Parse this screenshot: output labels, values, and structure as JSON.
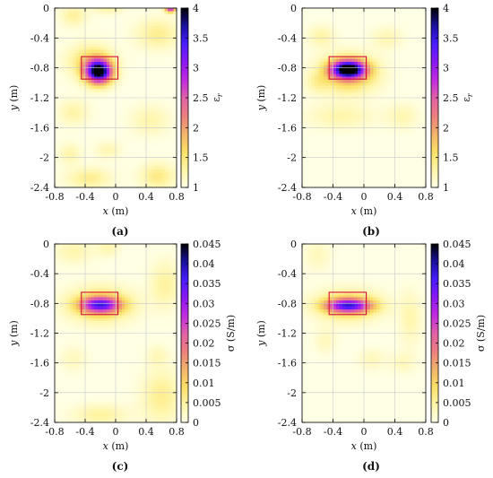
{
  "colormap": [
    "#ffffe6",
    "#fff5a8",
    "#fbe066",
    "#f2b36b",
    "#ec7e7e",
    "#e060a8",
    "#c02ae0",
    "#8a18f0",
    "#4a1cff",
    "#1a10a0",
    "#000000"
  ],
  "chart_data": [
    {
      "type": "heatmap",
      "id": "a",
      "caption": "(a)",
      "xlabel": "x (m)",
      "ylabel": "y (m)",
      "colorbar_label": "ε_r",
      "xlim": [
        -0.8,
        0.8
      ],
      "ylim": [
        -2.4,
        0
      ],
      "xticks": [
        -0.8,
        -0.4,
        0,
        0.4,
        0.8
      ],
      "xticklabels": [
        "-0.8",
        "-0.4",
        "0",
        "0.4",
        "0.8"
      ],
      "yticks": [
        0,
        -0.4,
        -0.8,
        -1.2,
        -1.6,
        -2,
        -2.4
      ],
      "yticklabels": [
        "0",
        "-0.4",
        "-0.8",
        "-1.2",
        "-1.6",
        "-2",
        "-2.4"
      ],
      "clim": [
        1,
        4
      ],
      "cbticks": [
        1,
        1.5,
        2,
        2.5,
        3,
        3.5,
        4
      ],
      "cbticklabels": [
        "1",
        "1.5",
        "2",
        "2.5",
        "3",
        "3.5",
        "4"
      ],
      "grid": true,
      "target_rect": {
        "x0": -0.45,
        "x1": 0.03,
        "y0": -0.95,
        "y1": -0.65
      },
      "blobs": [
        {
          "x": -0.22,
          "y": -0.85,
          "sx": 0.12,
          "sy": 0.11,
          "v": 3.05
        },
        {
          "x": -0.33,
          "y": -0.72,
          "sx": 0.2,
          "sy": 0.16,
          "v": 0.6
        },
        {
          "x": -0.55,
          "y": -0.1,
          "sx": 0.12,
          "sy": 0.1,
          "v": 0.35
        },
        {
          "x": -0.1,
          "y": 0.0,
          "sx": 0.14,
          "sy": 0.06,
          "v": 0.3
        },
        {
          "x": 0.55,
          "y": -0.35,
          "sx": 0.2,
          "sy": 0.14,
          "v": 0.4
        },
        {
          "x": 0.72,
          "y": 0.0,
          "sx": 0.05,
          "sy": 0.04,
          "v": 1.9
        },
        {
          "x": -0.55,
          "y": -1.4,
          "sx": 0.14,
          "sy": 0.12,
          "v": 0.3
        },
        {
          "x": 0.45,
          "y": -1.5,
          "sx": 0.18,
          "sy": 0.14,
          "v": 0.28
        },
        {
          "x": -0.35,
          "y": -2.28,
          "sx": 0.2,
          "sy": 0.1,
          "v": 0.4
        },
        {
          "x": 0.55,
          "y": -2.25,
          "sx": 0.16,
          "sy": 0.12,
          "v": 0.45
        },
        {
          "x": -0.1,
          "y": -1.9,
          "sx": 0.12,
          "sy": 0.08,
          "v": 0.25
        },
        {
          "x": -0.6,
          "y": -1.95,
          "sx": 0.1,
          "sy": 0.1,
          "v": 0.28
        }
      ]
    },
    {
      "type": "heatmap",
      "id": "b",
      "caption": "(b)",
      "xlabel": "x (m)",
      "ylabel": "y (m)",
      "colorbar_label": "ε_r",
      "xlim": [
        -0.8,
        0.8
      ],
      "ylim": [
        -2.4,
        0
      ],
      "xticks": [
        -0.8,
        -0.4,
        0,
        0.4,
        0.8
      ],
      "xticklabels": [
        "-0.8",
        "-0.4",
        "0",
        "0.4",
        "0.8"
      ],
      "yticks": [
        0,
        -0.4,
        -0.8,
        -1.2,
        -1.6,
        -2,
        -2.4
      ],
      "yticklabels": [
        "0",
        "-0.4",
        "-0.8",
        "-1.2",
        "-1.6",
        "-2",
        "-2.4"
      ],
      "clim": [
        1,
        4
      ],
      "cbticks": [
        1,
        1.5,
        2,
        2.5,
        3,
        3.5,
        4
      ],
      "cbticklabels": [
        "1",
        "1.5",
        "2",
        "2.5",
        "3",
        "3.5",
        "4"
      ],
      "grid": true,
      "target_rect": {
        "x0": -0.45,
        "x1": 0.03,
        "y0": -0.95,
        "y1": -0.65
      },
      "blobs": [
        {
          "x": -0.2,
          "y": -0.82,
          "sx": 0.15,
          "sy": 0.08,
          "v": 2.9
        },
        {
          "x": -0.2,
          "y": -0.88,
          "sx": 0.25,
          "sy": 0.17,
          "v": 0.9
        },
        {
          "x": -0.55,
          "y": -0.38,
          "sx": 0.12,
          "sy": 0.1,
          "v": 0.3
        },
        {
          "x": 0.3,
          "y": -0.4,
          "sx": 0.14,
          "sy": 0.1,
          "v": 0.25
        },
        {
          "x": -0.3,
          "y": -1.45,
          "sx": 0.3,
          "sy": 0.12,
          "v": 0.28
        },
        {
          "x": 0.5,
          "y": -1.45,
          "sx": 0.14,
          "sy": 0.12,
          "v": 0.25
        },
        {
          "x": -0.6,
          "y": -1.0,
          "sx": 0.1,
          "sy": 0.1,
          "v": 0.25
        }
      ]
    },
    {
      "type": "heatmap",
      "id": "c",
      "caption": "(c)",
      "xlabel": "x (m)",
      "ylabel": "y (m)",
      "colorbar_label": "σ (S/m)",
      "xlim": [
        -0.8,
        0.8
      ],
      "ylim": [
        -2.4,
        0
      ],
      "xticks": [
        -0.8,
        -0.4,
        0,
        0.4,
        0.8
      ],
      "xticklabels": [
        "-0.8",
        "-0.4",
        "0",
        "0.4",
        "0.8"
      ],
      "yticks": [
        0,
        -0.4,
        -0.8,
        -1.2,
        -1.6,
        -2,
        -2.4
      ],
      "yticklabels": [
        "0",
        "-0.4",
        "-0.8",
        "-1.2",
        "-1.6",
        "-2",
        "-2.4"
      ],
      "clim": [
        0,
        0.045
      ],
      "cbticks": [
        0,
        0.005,
        0.01,
        0.015,
        0.02,
        0.025,
        0.03,
        0.035,
        0.04,
        0.045
      ],
      "cbticklabels": [
        "0",
        "0.005",
        "0.01",
        "0.015",
        "0.02",
        "0.025",
        "0.03",
        "0.035",
        "0.04",
        "0.045"
      ],
      "grid": true,
      "target_rect": {
        "x0": -0.45,
        "x1": 0.03,
        "y0": -0.95,
        "y1": -0.65
      },
      "blobs": [
        {
          "x": -0.2,
          "y": -0.82,
          "sx": 0.18,
          "sy": 0.07,
          "v": 0.026
        },
        {
          "x": -0.2,
          "y": -0.82,
          "sx": 0.28,
          "sy": 0.16,
          "v": 0.012
        },
        {
          "x": -0.55,
          "y": -0.1,
          "sx": 0.18,
          "sy": 0.12,
          "v": 0.004
        },
        {
          "x": -0.1,
          "y": -0.05,
          "sx": 0.1,
          "sy": 0.08,
          "v": 0.004
        },
        {
          "x": 0.65,
          "y": -0.55,
          "sx": 0.14,
          "sy": 0.22,
          "v": 0.005
        },
        {
          "x": 0.55,
          "y": -1.5,
          "sx": 0.1,
          "sy": 0.1,
          "v": 0.003
        },
        {
          "x": 0.6,
          "y": -2.05,
          "sx": 0.18,
          "sy": 0.25,
          "v": 0.006
        },
        {
          "x": -0.2,
          "y": -2.3,
          "sx": 0.25,
          "sy": 0.1,
          "v": 0.005
        },
        {
          "x": -0.55,
          "y": -1.55,
          "sx": 0.12,
          "sy": 0.12,
          "v": 0.003
        }
      ]
    },
    {
      "type": "heatmap",
      "id": "d",
      "caption": "(d)",
      "xlabel": "x (m)",
      "ylabel": "y (m)",
      "colorbar_label": "σ (S/m)",
      "xlim": [
        -0.8,
        0.8
      ],
      "ylim": [
        -2.4,
        0
      ],
      "xticks": [
        -0.8,
        -0.4,
        0,
        0.4,
        0.8
      ],
      "xticklabels": [
        "-0.8",
        "-0.4",
        "0",
        "0.4",
        "0.8"
      ],
      "yticks": [
        0,
        -0.4,
        -0.8,
        -1.2,
        -1.6,
        -2,
        -2.4
      ],
      "yticklabels": [
        "0",
        "-0.4",
        "-0.8",
        "-1.2",
        "-1.6",
        "-2",
        "-2.4"
      ],
      "clim": [
        0,
        0.045
      ],
      "cbticks": [
        0,
        0.005,
        0.01,
        0.015,
        0.02,
        0.025,
        0.03,
        0.035,
        0.04,
        0.045
      ],
      "cbticklabels": [
        "0",
        "0.005",
        "0.01",
        "0.015",
        "0.02",
        "0.025",
        "0.03",
        "0.035",
        "0.04",
        "0.045"
      ],
      "grid": true,
      "target_rect": {
        "x0": -0.45,
        "x1": 0.03,
        "y0": -0.95,
        "y1": -0.65
      },
      "blobs": [
        {
          "x": -0.2,
          "y": -0.83,
          "sx": 0.2,
          "sy": 0.06,
          "v": 0.027
        },
        {
          "x": -0.2,
          "y": -0.83,
          "sx": 0.28,
          "sy": 0.14,
          "v": 0.012
        },
        {
          "x": -0.6,
          "y": -0.15,
          "sx": 0.12,
          "sy": 0.15,
          "v": 0.003
        },
        {
          "x": 0.6,
          "y": -1.0,
          "sx": 0.1,
          "sy": 0.25,
          "v": 0.004
        },
        {
          "x": -0.5,
          "y": -1.3,
          "sx": 0.1,
          "sy": 0.12,
          "v": 0.003
        },
        {
          "x": 0.1,
          "y": -1.55,
          "sx": 0.12,
          "sy": 0.1,
          "v": 0.003
        },
        {
          "x": 0.5,
          "y": -1.6,
          "sx": 0.12,
          "sy": 0.1,
          "v": 0.003
        }
      ]
    }
  ]
}
